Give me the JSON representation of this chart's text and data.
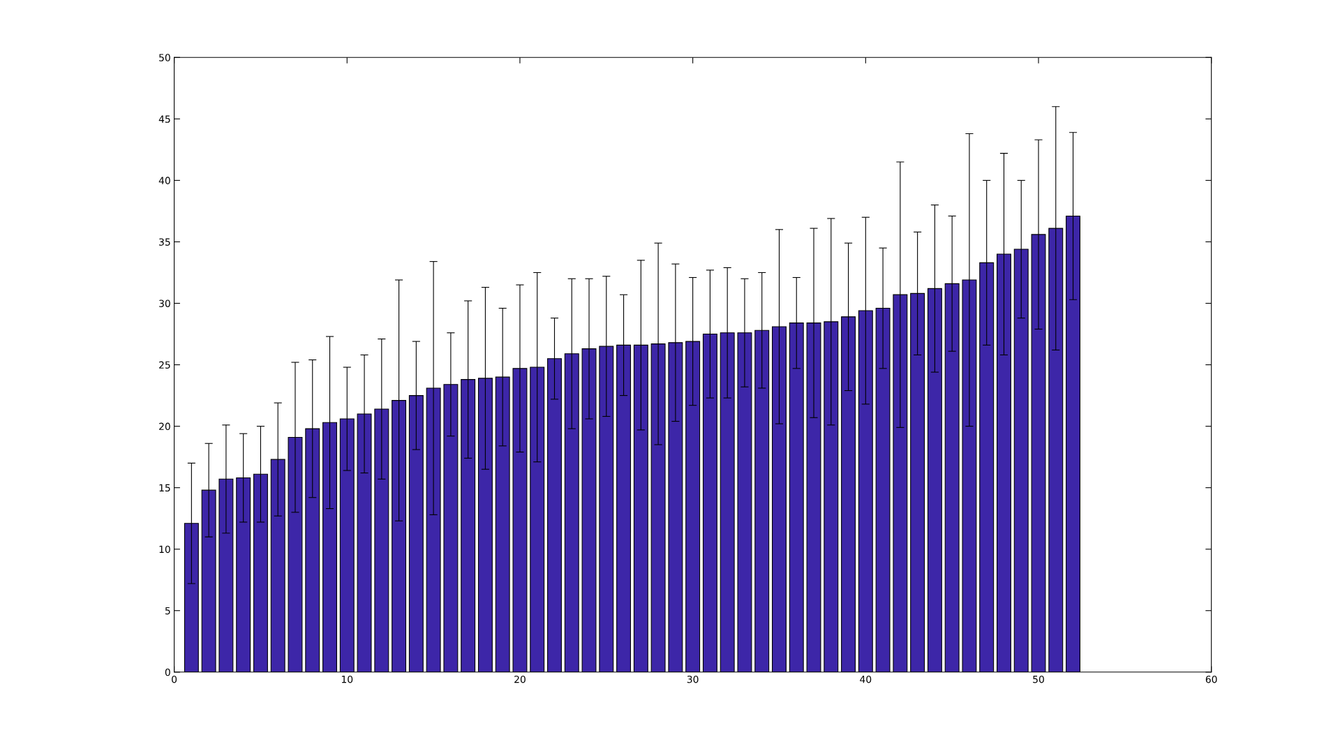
{
  "chart_data": {
    "type": "bar",
    "x": [
      1,
      2,
      3,
      4,
      5,
      6,
      7,
      8,
      9,
      10,
      11,
      12,
      13,
      14,
      15,
      16,
      17,
      18,
      19,
      20,
      21,
      22,
      23,
      24,
      25,
      26,
      27,
      28,
      29,
      30,
      31,
      32,
      33,
      34,
      35,
      36,
      37,
      38,
      39,
      40,
      41,
      42,
      43,
      44,
      45,
      46,
      47,
      48,
      49,
      50,
      51,
      52
    ],
    "values": [
      12.1,
      14.8,
      15.7,
      15.8,
      16.1,
      17.3,
      19.1,
      19.8,
      20.3,
      20.6,
      21.0,
      21.4,
      22.1,
      22.5,
      23.1,
      23.4,
      23.8,
      23.9,
      24.0,
      24.7,
      24.8,
      25.5,
      25.9,
      26.3,
      26.5,
      26.6,
      26.6,
      26.7,
      26.8,
      26.9,
      27.5,
      27.6,
      27.6,
      27.8,
      28.1,
      28.4,
      28.4,
      28.5,
      28.9,
      29.4,
      29.6,
      30.7,
      30.8,
      31.2,
      31.6,
      31.9,
      33.3,
      34.0,
      34.4,
      35.6,
      36.1,
      37.1
    ],
    "errors": [
      4.9,
      3.8,
      4.4,
      3.6,
      3.9,
      4.6,
      6.1,
      5.6,
      7.0,
      4.2,
      4.8,
      5.7,
      9.8,
      4.4,
      10.3,
      4.2,
      6.4,
      7.4,
      5.6,
      6.8,
      7.7,
      3.3,
      6.1,
      5.7,
      5.7,
      4.1,
      6.9,
      8.2,
      6.4,
      5.2,
      5.2,
      5.3,
      4.4,
      4.7,
      7.9,
      3.7,
      7.7,
      8.4,
      6.0,
      7.6,
      4.9,
      10.8,
      5.0,
      6.8,
      5.5,
      11.9,
      6.7,
      8.2,
      5.6,
      7.7,
      9.9,
      6.8
    ],
    "color": "#3d26a8",
    "xlim": [
      0,
      60
    ],
    "xticks": [
      0,
      10,
      20,
      30,
      40,
      50,
      60
    ],
    "ylim": [
      0,
      50
    ],
    "yticks": [
      0,
      5,
      10,
      15,
      20,
      25,
      30,
      35,
      40,
      45,
      50
    ],
    "grid": false
  }
}
